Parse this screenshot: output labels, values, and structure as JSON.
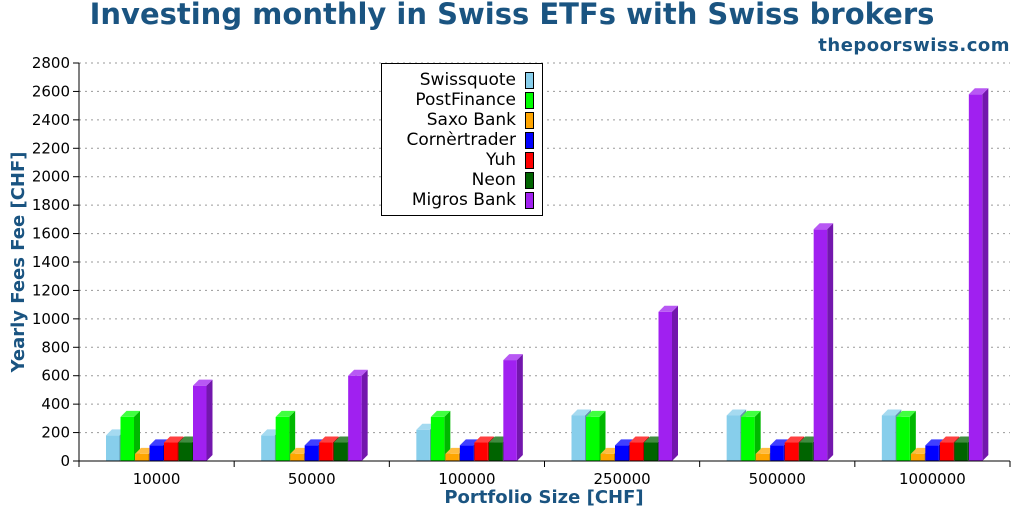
{
  "title": "Investing monthly in Swiss ETFs with Swiss brokers",
  "site": "thepoorswiss.com",
  "chart_data": {
    "type": "bar",
    "title": "Investing monthly in Swiss ETFs with Swiss brokers",
    "xlabel": "Portfolio Size [CHF]",
    "ylabel": "Yearly Fees Fee [CHF]",
    "ylim": [
      0,
      2800
    ],
    "yticks": [
      0,
      200,
      400,
      600,
      800,
      1000,
      1200,
      1400,
      1600,
      1800,
      2000,
      2200,
      2400,
      2600,
      2800
    ],
    "grid": true,
    "legend_position": "top-center",
    "categories": [
      "10000",
      "50000",
      "100000",
      "250000",
      "500000",
      "1000000"
    ],
    "series": [
      {
        "name": "Swissquote",
        "color": "#87ceeb",
        "values": [
          180,
          180,
          220,
          320,
          320,
          320
        ]
      },
      {
        "name": "PostFinance",
        "color": "#00ff00",
        "values": [
          310,
          310,
          310,
          310,
          310,
          310
        ]
      },
      {
        "name": "Saxo Bank",
        "color": "#ffa500",
        "values": [
          50,
          50,
          50,
          50,
          50,
          50
        ]
      },
      {
        "name": "Cornèrtrader",
        "color": "#0000ff",
        "values": [
          110,
          110,
          110,
          110,
          110,
          110
        ]
      },
      {
        "name": "Yuh",
        "color": "#ff0000",
        "values": [
          130,
          130,
          130,
          130,
          130,
          130
        ]
      },
      {
        "name": "Neon",
        "color": "#006400",
        "values": [
          130,
          130,
          130,
          130,
          130,
          130
        ]
      },
      {
        "name": "Migros Bank",
        "color": "#a020f0",
        "values": [
          530,
          600,
          710,
          1050,
          1630,
          2580
        ]
      }
    ]
  }
}
